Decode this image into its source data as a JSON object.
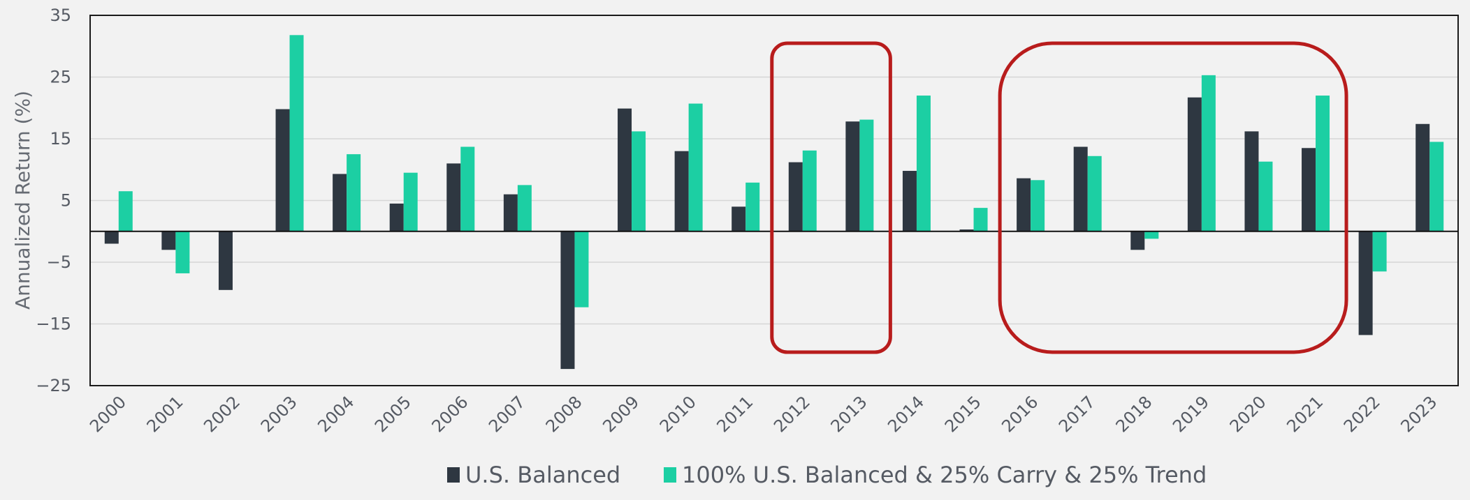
{
  "chart_data": {
    "type": "bar",
    "title": "",
    "xlabel": "",
    "ylabel": "Annualized Return  (%)",
    "ylim": [
      -25,
      35
    ],
    "yticks": [
      -25,
      -15,
      -5,
      5,
      15,
      25,
      35
    ],
    "ytick_labels": [
      "−25",
      "−15",
      "−5",
      "5",
      "15",
      "25",
      "35"
    ],
    "grid": true,
    "legend_position": "bottom-center",
    "categories": [
      "2000",
      "2001",
      "2002",
      "2003",
      "2004",
      "2005",
      "2006",
      "2007",
      "2008",
      "2009",
      "2010",
      "2011",
      "2012",
      "2013",
      "2014",
      "2015",
      "2016",
      "2017",
      "2018",
      "2019",
      "2020",
      "2021",
      "2022",
      "2023"
    ],
    "series": [
      {
        "name": "U.S. Balanced",
        "color": "#2e3741",
        "values": [
          -2,
          -3,
          -9.5,
          19.8,
          9.3,
          4.5,
          11,
          6,
          -22.3,
          19.9,
          13,
          4,
          11.2,
          17.8,
          9.8,
          0.3,
          8.6,
          13.7,
          -3,
          21.7,
          16.2,
          13.5,
          -16.8,
          17.4
        ]
      },
      {
        "name": "100% U.S. Balanced & 25% Carry & 25% Trend",
        "color": "#1ccfa3",
        "values": [
          6.5,
          -6.8,
          0,
          31.8,
          12.5,
          9.5,
          13.7,
          7.5,
          -12.3,
          16.2,
          20.7,
          7.9,
          13.1,
          18.1,
          22,
          3.8,
          8.3,
          12.2,
          -1.2,
          25.3,
          11.3,
          22,
          -6.5,
          14.5
        ]
      }
    ],
    "annotations": [
      {
        "type": "highlight-box",
        "color": "#b81c1c",
        "from_category": "2012",
        "to_category": "2013"
      },
      {
        "type": "highlight-box",
        "color": "#b81c1c",
        "from_category": "2016",
        "to_category": "2021"
      }
    ]
  }
}
